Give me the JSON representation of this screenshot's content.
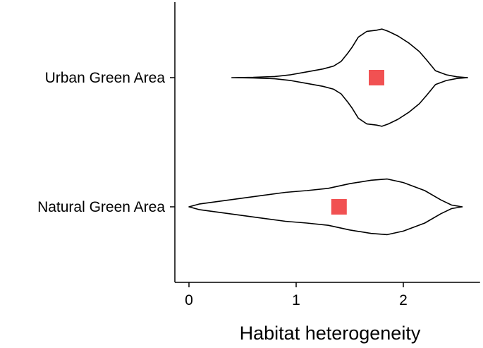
{
  "chart_data": {
    "type": "violin",
    "xlabel": "Habitat heterogeneity",
    "ylabel": "",
    "xlim": [
      -0.15,
      2.65
    ],
    "xticks": [
      0,
      1,
      2
    ],
    "xtick_labels": [
      "0",
      "1",
      "2"
    ],
    "categories": [
      "Urban Green Area",
      "Natural Green Area"
    ],
    "grid": false,
    "mean_marker": {
      "shape": "square",
      "color": "#f15152"
    },
    "outline_color": "#000000",
    "violins": [
      {
        "category": "Urban Green Area",
        "mean": 1.75,
        "profile": [
          [
            0.4,
            0.0
          ],
          [
            0.6,
            0.005
          ],
          [
            0.8,
            0.02
          ],
          [
            0.95,
            0.05
          ],
          [
            1.1,
            0.1
          ],
          [
            1.25,
            0.15
          ],
          [
            1.35,
            0.2
          ],
          [
            1.42,
            0.28
          ],
          [
            1.48,
            0.42
          ],
          [
            1.52,
            0.52
          ],
          [
            1.58,
            0.7
          ],
          [
            1.66,
            0.8
          ],
          [
            1.75,
            0.82
          ],
          [
            1.8,
            0.84
          ],
          [
            1.86,
            0.8
          ],
          [
            1.95,
            0.72
          ],
          [
            2.05,
            0.6
          ],
          [
            2.15,
            0.45
          ],
          [
            2.22,
            0.3
          ],
          [
            2.3,
            0.12
          ],
          [
            2.4,
            0.05
          ],
          [
            2.5,
            0.015
          ],
          [
            2.6,
            0.0
          ]
        ]
      },
      {
        "category": "Natural Green Area",
        "mean": 1.4,
        "profile": [
          [
            0.0,
            0.0
          ],
          [
            0.1,
            0.05
          ],
          [
            0.3,
            0.1
          ],
          [
            0.5,
            0.15
          ],
          [
            0.7,
            0.2
          ],
          [
            0.9,
            0.25
          ],
          [
            1.1,
            0.28
          ],
          [
            1.3,
            0.32
          ],
          [
            1.5,
            0.4
          ],
          [
            1.7,
            0.46
          ],
          [
            1.85,
            0.48
          ],
          [
            2.0,
            0.42
          ],
          [
            2.2,
            0.28
          ],
          [
            2.35,
            0.12
          ],
          [
            2.45,
            0.03
          ],
          [
            2.55,
            0.0
          ]
        ]
      }
    ]
  }
}
